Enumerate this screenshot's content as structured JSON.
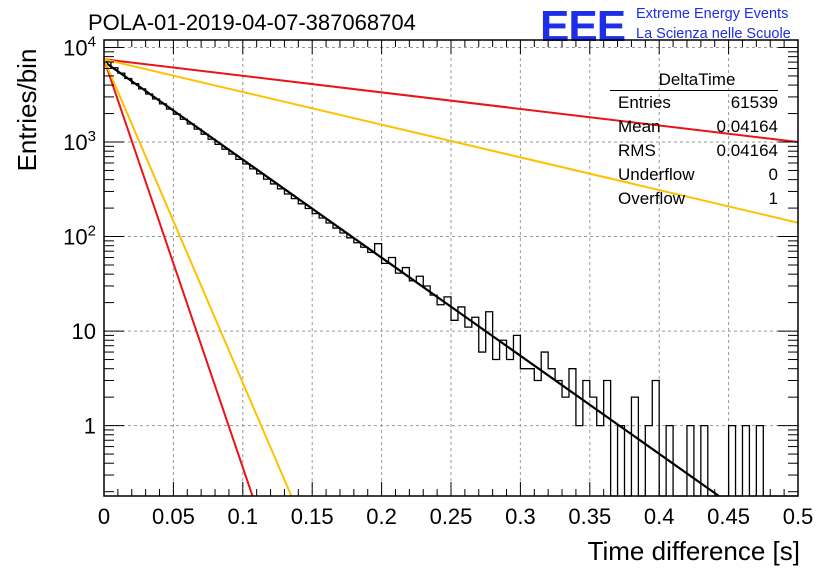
{
  "title": "POLA-01-2019-04-07-387068704",
  "logo": {
    "mark": "EEE",
    "line1": "Extreme Energy Events",
    "line2": "La Scienza nelle Scuole",
    "color": "#1d2ee8"
  },
  "stats_box": {
    "name": "DeltaTime",
    "rows": [
      {
        "label": "Entries",
        "value": "61539"
      },
      {
        "label": "Mean",
        "value": "0.04164"
      },
      {
        "label": "RMS",
        "value": "0.04164"
      },
      {
        "label": "Underflow",
        "value": "0"
      },
      {
        "label": "Overflow",
        "value": "1"
      }
    ]
  },
  "chart_data": {
    "type": "line",
    "xlabel": "Time difference [s]",
    "ylabel": "Entries/bin",
    "xlim": [
      0,
      0.5
    ],
    "ylim": [
      0.18,
      12000
    ],
    "yscale": "log",
    "grid": true,
    "x_ticks": [
      "0",
      "0.05",
      "0.1",
      "0.15",
      "0.2",
      "0.25",
      "0.3",
      "0.35",
      "0.4",
      "0.45",
      "0.5"
    ],
    "y_ticks": [
      {
        "value": 1,
        "label": "1"
      },
      {
        "value": 10,
        "label": "10"
      },
      {
        "value": 100,
        "label": "10^2"
      },
      {
        "value": 1000,
        "label": "10^3"
      },
      {
        "value": 10000,
        "label": "10^4"
      }
    ],
    "histogram": {
      "bin_width": 0.005,
      "color": "#000000",
      "values": [
        7100,
        6100,
        5350,
        4700,
        4150,
        3650,
        3220,
        2850,
        2530,
        2230,
        1970,
        1740,
        1550,
        1370,
        1210,
        1070,
        945,
        840,
        745,
        655,
        585,
        520,
        460,
        405,
        360,
        320,
        282,
        252,
        222,
        198,
        175,
        157,
        139,
        123,
        109,
        97,
        86,
        77,
        68,
        84,
        52,
        60,
        41,
        47,
        34,
        38,
        30,
        24,
        19,
        23,
        13,
        18,
        11,
        14,
        6,
        16,
        5,
        8,
        5,
        9,
        4,
        4,
        3,
        6,
        4,
        3,
        2,
        4,
        1,
        3,
        2,
        1,
        3,
        0,
        1,
        0,
        2,
        0,
        1,
        3,
        0,
        1,
        0,
        0,
        1,
        0,
        1,
        0,
        0,
        0,
        1,
        0,
        1,
        0,
        1,
        0,
        0,
        0,
        0,
        0
      ]
    },
    "series": [
      {
        "kind": "fit",
        "color": "#000000",
        "points": [
          [
            0,
            7100
          ],
          [
            0.443,
            0.18
          ]
        ]
      },
      {
        "kind": "red-slow",
        "color": "#e8141a",
        "points": [
          [
            0,
            7500
          ],
          [
            0.5,
            1000
          ]
        ]
      },
      {
        "kind": "orange-slow",
        "color": "#ffc000",
        "points": [
          [
            0,
            7500
          ],
          [
            0.5,
            140
          ]
        ]
      },
      {
        "kind": "red-fast",
        "color": "#e8141a",
        "points": [
          [
            0,
            7500
          ],
          [
            0.107,
            0.18
          ]
        ]
      },
      {
        "kind": "orange-fast",
        "color": "#ffc000",
        "points": [
          [
            0,
            7500
          ],
          [
            0.135,
            0.18
          ]
        ]
      }
    ]
  }
}
